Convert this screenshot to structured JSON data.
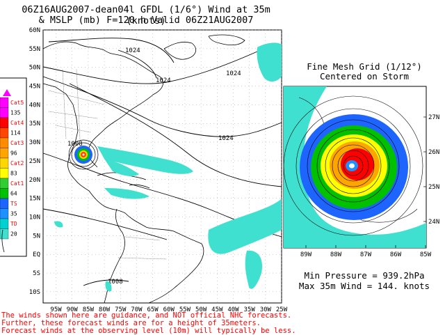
{
  "title_line1": "06Z16AUG2007-dean04l GFDL (1/6°) Wind at 35m (knots)",
  "title_line2": "& MSLP (mb) F=120 h Valid 06Z21AUG2007",
  "inset": {
    "title_line1": "Fine Mesh Grid (1/12°)",
    "title_line2": "Centered on Storm",
    "lat_labels": [
      "27N",
      "26N",
      "25N",
      "24N"
    ],
    "lon_labels": [
      "89W",
      "88W",
      "87W",
      "86W",
      "85W"
    ]
  },
  "readout": {
    "min_pressure": "Min Pressure = 939.2hPa",
    "max_wind": "Max 35m Wind = 144. knots"
  },
  "map": {
    "lat_labels": [
      "60N",
      "55N",
      "50N",
      "45N",
      "40N",
      "35N",
      "30N",
      "25N",
      "20N",
      "15N",
      "10N",
      "5N",
      "EQ",
      "5S",
      "10S"
    ],
    "lon_labels": [
      "95W",
      "90W",
      "85W",
      "80W",
      "75W",
      "70W",
      "65W",
      "60W",
      "55W",
      "50W",
      "45W",
      "40W",
      "35W",
      "30W",
      "25W"
    ],
    "isobar_labels": [
      "1024",
      "1024",
      "1024",
      "1024",
      "1008",
      "1008"
    ]
  },
  "legend": {
    "items": [
      {
        "label": "Cat5",
        "color": "#ff00ff",
        "label_color": "#ff0000"
      },
      {
        "label": "135",
        "color": "#ff00ff",
        "label_color": "#000000"
      },
      {
        "label": "Cat4",
        "color": "#ff0000",
        "label_color": "#ff0000"
      },
      {
        "label": "114",
        "color": "#ff4500",
        "label_color": "#000000"
      },
      {
        "label": "Cat3",
        "color": "#ff8c00",
        "label_color": "#ff0000"
      },
      {
        "label": "96",
        "color": "#ffa500",
        "label_color": "#000000"
      },
      {
        "label": "Cat2",
        "color": "#ffd700",
        "label_color": "#ff0000"
      },
      {
        "label": "83",
        "color": "#ffff00",
        "label_color": "#000000"
      },
      {
        "label": "Cat1",
        "color": "#32cd32",
        "label_color": "#ff0000"
      },
      {
        "label": "64",
        "color": "#00c000",
        "label_color": "#000000"
      },
      {
        "label": "TS",
        "color": "#1e64ff",
        "label_color": "#ff0000"
      },
      {
        "label": "35",
        "color": "#1e90ff",
        "label_color": "#000000"
      },
      {
        "label": "TD",
        "color": "#00d0d0",
        "label_color": "#ff0000"
      },
      {
        "label": "20",
        "color": "#40e0d0",
        "label_color": "#000000"
      }
    ]
  },
  "disclaimer": {
    "line1": "The winds shown here are guidance, and NOT official NHC forecasts.",
    "line2": "Further, these forecast winds are for a height of 35meters.",
    "line3": "Forecast winds at the observing level (10m) will typically be less."
  },
  "colors": {
    "td": "#40e0d0",
    "ts": "#1e64ff",
    "cat1": "#00c000",
    "cat2": "#ffff00",
    "cat3": "#ffa500",
    "cat4": "#ff0000",
    "cat5": "#ff00ff"
  }
}
